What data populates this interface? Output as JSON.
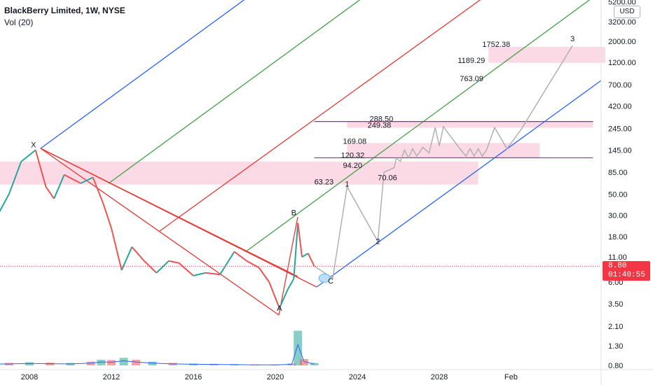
{
  "header": {
    "symbol_line": "BlackBerry Limited, 1W, NYSE",
    "volume_line": "Vol (20)"
  },
  "price_axis": {
    "currency": "USD",
    "last_price": "8.80",
    "countdown": "01:40:55"
  },
  "colors": {
    "candle_up": "#26a69a",
    "candle_down": "#ef5350",
    "zone_fill": "#f8bbd0",
    "level_line": "#9c27b0",
    "forecast_path": "#b0b0b0",
    "pitchfork_blue": "#2962ff",
    "pitchfork_green": "#43a047",
    "pitchfork_red": "#e53935"
  },
  "chart_data": {
    "type": "line",
    "symbol": "BlackBerry Limited",
    "interval": "1W",
    "exchange": "NYSE",
    "y_scale": "log",
    "x_ticks": [
      "2008",
      "2012",
      "2016",
      "2020",
      "2024",
      "2028",
      "Feb"
    ],
    "y_ticks": [
      "0.80",
      "1.30",
      "2.10",
      "3.50",
      "6.00",
      "11.00",
      "18.00",
      "30.00",
      "50.00",
      "85.00",
      "145.00",
      "245.00",
      "420.00",
      "700.00",
      "1200.00",
      "2000.00",
      "3200.00",
      "5200.00"
    ],
    "price_history": [
      {
        "date": "2006.0",
        "close": 20
      },
      {
        "date": "2007.0",
        "close": 50
      },
      {
        "date": "2007.6",
        "close": 110
      },
      {
        "date": "2008.3",
        "close": 145
      },
      {
        "date": "2008.8",
        "close": 60
      },
      {
        "date": "2009.2",
        "close": 45
      },
      {
        "date": "2009.7",
        "close": 80
      },
      {
        "date": "2010.5",
        "close": 65
      },
      {
        "date": "2011.1",
        "close": 75
      },
      {
        "date": "2011.6",
        "close": 40
      },
      {
        "date": "2012.0",
        "close": 22
      },
      {
        "date": "2012.5",
        "close": 8
      },
      {
        "date": "2013.0",
        "close": 14
      },
      {
        "date": "2013.6",
        "close": 10
      },
      {
        "date": "2014.2",
        "close": 7.5
      },
      {
        "date": "2014.8",
        "close": 10
      },
      {
        "date": "2015.3",
        "close": 9.5
      },
      {
        "date": "2016.0",
        "close": 7
      },
      {
        "date": "2016.6",
        "close": 7.5
      },
      {
        "date": "2017.3",
        "close": 7.2
      },
      {
        "date": "2018.0",
        "close": 12.5
      },
      {
        "date": "2018.6",
        "close": 10
      },
      {
        "date": "2019.2",
        "close": 8.5
      },
      {
        "date": "2019.7",
        "close": 6
      },
      {
        "date": "2020.2",
        "close": 3.2
      },
      {
        "date": "2020.6",
        "close": 5
      },
      {
        "date": "2020.9",
        "close": 6.5
      },
      {
        "date": "2021.1",
        "close": 25
      },
      {
        "date": "2021.3",
        "close": 11
      },
      {
        "date": "2021.6",
        "close": 12
      },
      {
        "date": "2021.9",
        "close": 8.8
      }
    ],
    "wave_labels": [
      {
        "text": "X",
        "date": "2008.2",
        "price": 155
      },
      {
        "text": "A",
        "date": "2020.2",
        "price": 3.0
      },
      {
        "text": "B",
        "date": "2020.9",
        "price": 30
      },
      {
        "text": "C",
        "date": "2022.7",
        "price": 5.8
      },
      {
        "text": "1",
        "date": "2023.5",
        "price": 60
      },
      {
        "text": "2",
        "date": "2025.0",
        "price": 15
      },
      {
        "text": "3",
        "date": "2034.5",
        "price": 2000
      }
    ],
    "forecast_path": [
      {
        "date": "2021.9",
        "close": 8.8
      },
      {
        "date": "2022.8",
        "close": 6.6
      },
      {
        "date": "2023.5",
        "close": 60
      },
      {
        "date": "2025.0",
        "close": 16
      },
      {
        "date": "2025.3",
        "close": 85
      },
      {
        "date": "2025.8",
        "close": 95
      },
      {
        "date": "2025.9",
        "close": 120
      },
      {
        "date": "2026.1",
        "close": 110
      },
      {
        "date": "2026.3",
        "close": 145
      },
      {
        "date": "2026.5",
        "close": 120
      },
      {
        "date": "2026.7",
        "close": 150
      },
      {
        "date": "2026.9",
        "close": 125
      },
      {
        "date": "2027.2",
        "close": 155
      },
      {
        "date": "2027.5",
        "close": 135
      },
      {
        "date": "2027.8",
        "close": 250
      },
      {
        "date": "2028.0",
        "close": 160
      },
      {
        "date": "2028.2",
        "close": 255
      },
      {
        "date": "2029.0",
        "close": 150
      },
      {
        "date": "2029.3",
        "close": 125
      },
      {
        "date": "2029.5",
        "close": 150
      },
      {
        "date": "2029.7",
        "close": 125
      },
      {
        "date": "2029.9",
        "close": 150
      },
      {
        "date": "2030.1",
        "close": 125
      },
      {
        "date": "2030.3",
        "close": 145
      },
      {
        "date": "2030.7",
        "close": 250
      },
      {
        "date": "2031.3",
        "close": 150
      },
      {
        "date": "2032.0",
        "close": 240
      },
      {
        "date": "2034.5",
        "close": 1800
      }
    ],
    "fib_levels": [
      {
        "text": "63.23",
        "date": "2021.9",
        "price": 63.23
      },
      {
        "text": "94.20",
        "date": "2023.3",
        "price": 94.2
      },
      {
        "text": "120.32",
        "date": "2023.2",
        "price": 120.32
      },
      {
        "text": "169.08",
        "date": "2023.3",
        "price": 169.08
      },
      {
        "text": "70.06",
        "date": "2025.0",
        "price": 70.06
      },
      {
        "text": "249.38",
        "date": "2024.5",
        "price": 249.38
      },
      {
        "text": "288.50",
        "date": "2024.6",
        "price": 288.5
      },
      {
        "text": "763.09",
        "date": "2029.0",
        "price": 763.09
      },
      {
        "text": "1189.29",
        "date": "2028.9",
        "price": 1189.29
      },
      {
        "text": "1752.38",
        "date": "2030.1",
        "price": 1752.38
      }
    ],
    "zones": [
      {
        "date_from": "2005.8",
        "date_to": "2029.9",
        "price_from": 63,
        "price_to": 110
      },
      {
        "date_from": "2023.5",
        "date_to": "2032.9",
        "price_from": 120,
        "price_to": 172
      },
      {
        "date_from": "2023.5",
        "date_to": "2035.5",
        "price_from": 249,
        "price_to": 288
      },
      {
        "date_from": "2030.4",
        "date_to": "2036.1",
        "price_from": 1189,
        "price_to": 1752
      }
    ],
    "horizontal_lines": [
      {
        "price": 120.32,
        "date_from": "2021.9",
        "date_to": "2035.5"
      },
      {
        "price": 288.5,
        "date_from": "2021.9",
        "date_to": "2035.5"
      }
    ],
    "volume": [
      {
        "date": "2006.0",
        "value": 0.35
      },
      {
        "date": "2007.0",
        "value": 0.4
      },
      {
        "date": "2008.0",
        "value": 0.5
      },
      {
        "date": "2009.0",
        "value": 0.45
      },
      {
        "date": "2010.0",
        "value": 0.4
      },
      {
        "date": "2011.0",
        "value": 0.6
      },
      {
        "date": "2011.5",
        "value": 0.9
      },
      {
        "date": "2012.0",
        "value": 0.85
      },
      {
        "date": "2012.6",
        "value": 1.2
      },
      {
        "date": "2013.2",
        "value": 0.9
      },
      {
        "date": "2014.0",
        "value": 0.6
      },
      {
        "date": "2015.0",
        "value": 0.4
      },
      {
        "date": "2016.0",
        "value": 0.3
      },
      {
        "date": "2017.0",
        "value": 0.25
      },
      {
        "date": "2018.0",
        "value": 0.2
      },
      {
        "date": "2019.0",
        "value": 0.15
      },
      {
        "date": "2020.0",
        "value": 0.15
      },
      {
        "date": "2020.8",
        "value": 0.3
      },
      {
        "date": "2021.1",
        "value": 5.5
      },
      {
        "date": "2021.4",
        "value": 1.0
      },
      {
        "date": "2021.9",
        "value": 0.4
      }
    ]
  }
}
